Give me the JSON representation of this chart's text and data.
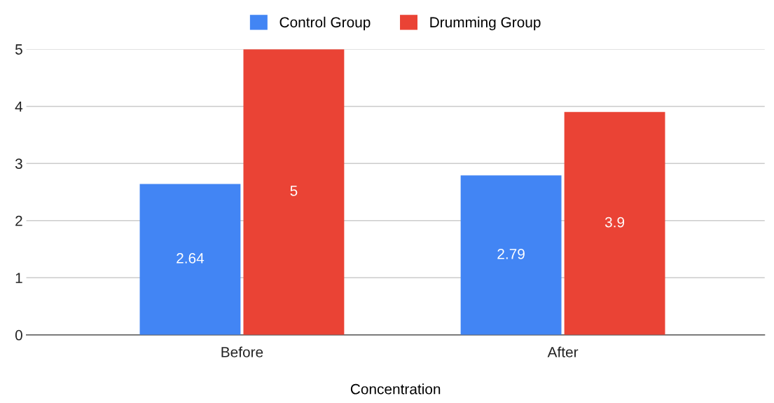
{
  "chart_data": {
    "type": "bar",
    "xlabel": "Concentration",
    "categories": [
      "Before",
      "After"
    ],
    "series": [
      {
        "name": "Control Group",
        "color": "#4285f4",
        "values": [
          2.64,
          2.79
        ]
      },
      {
        "name": "Drumming Group",
        "color": "#ea4335",
        "values": [
          5,
          3.9
        ]
      }
    ],
    "ylim": [
      0,
      5
    ],
    "yticks": [
      0,
      1,
      2,
      3,
      4,
      5
    ],
    "grid": "y",
    "legend": "top",
    "data_labels": true
  }
}
